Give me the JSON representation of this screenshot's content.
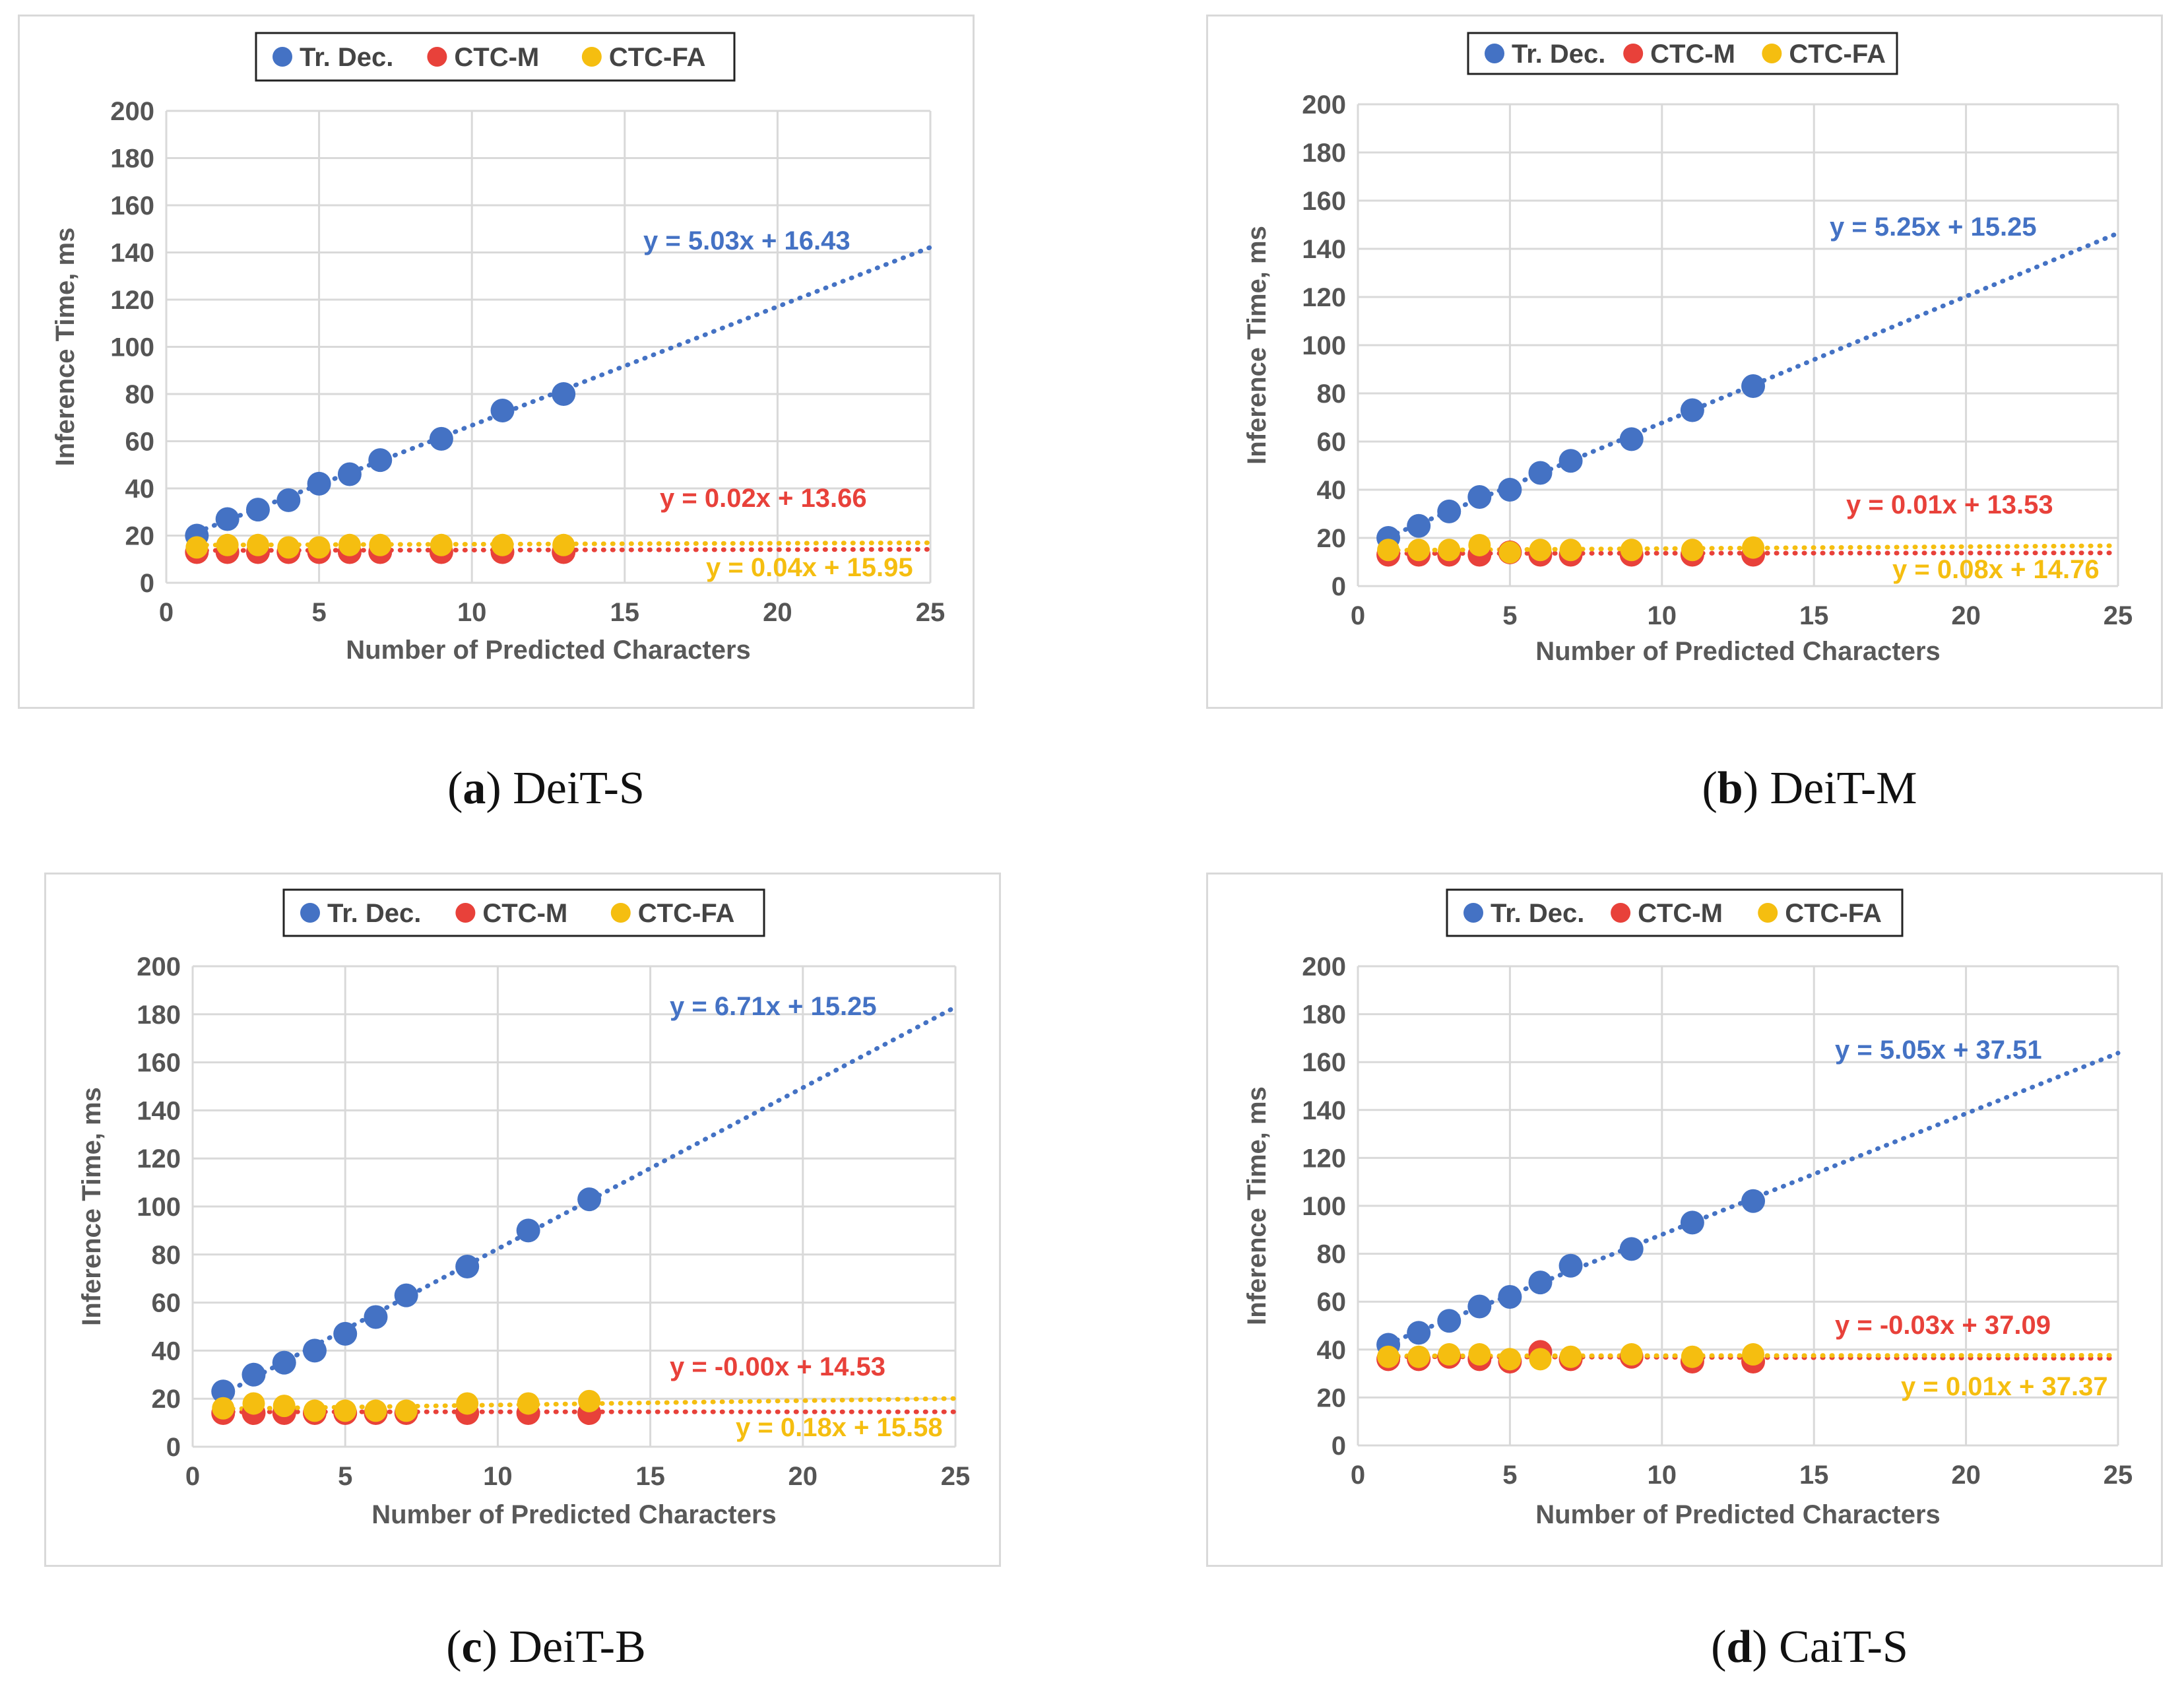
{
  "colors": {
    "tr_dec": "#4472C4",
    "ctc_m": "#E8413A",
    "ctc_fa": "#F5BE10",
    "grid": "#d9d9d9",
    "text": "#595959"
  },
  "panels": [
    {
      "letter": "a",
      "label": "DeiT-S"
    },
    {
      "letter": "b",
      "label": "DeiT-M"
    },
    {
      "letter": "c",
      "label": "DeiT-B"
    },
    {
      "letter": "d",
      "label": "CaiT-S"
    }
  ],
  "chart_data": [
    {
      "type": "scatter",
      "title": "DeiT-S",
      "xlabel": "Number of Predicted Characters",
      "ylabel": "Inference Time, ms",
      "xlim": [
        0,
        25
      ],
      "ylim": [
        0,
        200
      ],
      "xticks": [
        "0",
        "5",
        "10",
        "15",
        "20",
        "25"
      ],
      "yticks": [
        "0",
        "20",
        "40",
        "60",
        "80",
        "100",
        "120",
        "140",
        "160",
        "180",
        "200"
      ],
      "legend": [
        "Tr. Dec.",
        "CTC-M",
        "CTC-FA"
      ],
      "x": [
        1,
        2,
        3,
        4,
        5,
        6,
        7,
        9,
        11,
        13
      ],
      "series": [
        {
          "name": "Tr. Dec.",
          "values": [
            20,
            27,
            31,
            35,
            42,
            46,
            52,
            61,
            73,
            80
          ],
          "trend": {
            "slope": 5.03,
            "intercept": 16.43
          },
          "equation": "y = 5.03x + 16.43"
        },
        {
          "name": "CTC-M",
          "values": [
            13,
            13,
            13,
            13,
            13,
            13,
            13,
            13,
            13,
            13
          ],
          "trend": {
            "slope": 0.02,
            "intercept": 13.66
          },
          "equation": "y = 0.02x + 13.66"
        },
        {
          "name": "CTC-FA",
          "values": [
            15,
            16,
            16,
            15,
            15,
            16,
            16,
            16,
            16,
            16
          ],
          "trend": {
            "slope": 0.04,
            "intercept": 15.95
          },
          "equation": "y = 0.04x + 15.95"
        }
      ]
    },
    {
      "type": "scatter",
      "title": "DeiT-M",
      "xlabel": "Number of Predicted Characters",
      "ylabel": "Inference Time, ms",
      "xlim": [
        0,
        25
      ],
      "ylim": [
        0,
        200
      ],
      "xticks": [
        "0",
        "5",
        "10",
        "15",
        "20",
        "25"
      ],
      "yticks": [
        "0",
        "20",
        "40",
        "60",
        "80",
        "100",
        "120",
        "140",
        "160",
        "180",
        "200"
      ],
      "legend": [
        "Tr. Dec.",
        "CTC-M",
        "CTC-FA"
      ],
      "x": [
        1,
        2,
        3,
        4,
        5,
        6,
        7,
        9,
        11,
        13
      ],
      "series": [
        {
          "name": "Tr. Dec.",
          "values": [
            20,
            25,
            31,
            37,
            40,
            47,
            52,
            61,
            73,
            83
          ],
          "trend": {
            "slope": 5.25,
            "intercept": 15.25
          },
          "equation": "y = 5.25x + 15.25"
        },
        {
          "name": "CTC-M",
          "values": [
            13,
            13,
            13,
            13,
            14,
            13,
            13,
            13,
            13,
            13
          ],
          "trend": {
            "slope": 0.01,
            "intercept": 13.53
          },
          "equation": "y = 0.01x + 13.53"
        },
        {
          "name": "CTC-FA",
          "values": [
            15,
            15,
            15,
            17,
            14,
            15,
            15,
            15,
            15,
            16
          ],
          "trend": {
            "slope": 0.08,
            "intercept": 14.76
          },
          "equation": "y = 0.08x + 14.76"
        }
      ]
    },
    {
      "type": "scatter",
      "title": "DeiT-B",
      "xlabel": "Number of Predicted Characters",
      "ylabel": "Inference Time, ms",
      "xlim": [
        0,
        25
      ],
      "ylim": [
        0,
        200
      ],
      "xticks": [
        "0",
        "5",
        "10",
        "15",
        "20",
        "25"
      ],
      "yticks": [
        "0",
        "20",
        "40",
        "60",
        "80",
        "100",
        "120",
        "140",
        "160",
        "180",
        "200"
      ],
      "legend": [
        "Tr. Dec.",
        "CTC-M",
        "CTC-FA"
      ],
      "x": [
        1,
        2,
        3,
        4,
        5,
        6,
        7,
        9,
        11,
        13
      ],
      "series": [
        {
          "name": "Tr. Dec.",
          "values": [
            23,
            30,
            35,
            40,
            47,
            54,
            63,
            75,
            90,
            103
          ],
          "trend": {
            "slope": 6.71,
            "intercept": 15.25
          },
          "equation": "y = 6.71x + 15.25"
        },
        {
          "name": "CTC-M",
          "values": [
            14,
            14,
            14,
            14,
            14,
            14,
            14,
            14,
            14,
            14
          ],
          "trend": {
            "slope": -0.0,
            "intercept": 14.53
          },
          "equation": "y = -0.00x + 14.53"
        },
        {
          "name": "CTC-FA",
          "values": [
            16,
            18,
            17,
            15,
            15,
            15,
            15,
            18,
            18,
            19
          ],
          "trend": {
            "slope": 0.18,
            "intercept": 15.58
          },
          "equation": "y = 0.18x + 15.58"
        }
      ]
    },
    {
      "type": "scatter",
      "title": "CaiT-S",
      "xlabel": "Number of Predicted Characters",
      "ylabel": "Inference Time, ms",
      "xlim": [
        0,
        25
      ],
      "ylim": [
        0,
        200
      ],
      "xticks": [
        "0",
        "5",
        "10",
        "15",
        "20",
        "25"
      ],
      "yticks": [
        "0",
        "20",
        "40",
        "60",
        "80",
        "100",
        "120",
        "140",
        "160",
        "180",
        "200"
      ],
      "legend": [
        "Tr. Dec.",
        "CTC-M",
        "CTC-FA"
      ],
      "x": [
        1,
        2,
        3,
        4,
        5,
        6,
        7,
        9,
        11,
        13
      ],
      "series": [
        {
          "name": "Tr. Dec.",
          "values": [
            42,
            47,
            52,
            58,
            62,
            68,
            75,
            82,
            93,
            102
          ],
          "trend": {
            "slope": 5.05,
            "intercept": 37.51
          },
          "equation": "y = 5.05x + 37.51"
        },
        {
          "name": "CTC-M",
          "values": [
            36,
            36,
            37,
            36,
            35,
            39,
            36,
            37,
            35,
            35
          ],
          "trend": {
            "slope": -0.03,
            "intercept": 37.09
          },
          "equation": "y = -0.03x + 37.09"
        },
        {
          "name": "CTC-FA",
          "values": [
            37,
            37,
            38,
            38,
            36,
            36,
            37,
            38,
            37,
            38
          ],
          "trend": {
            "slope": 0.01,
            "intercept": 37.37
          },
          "equation": "y = 0.01x + 37.37"
        }
      ]
    }
  ]
}
